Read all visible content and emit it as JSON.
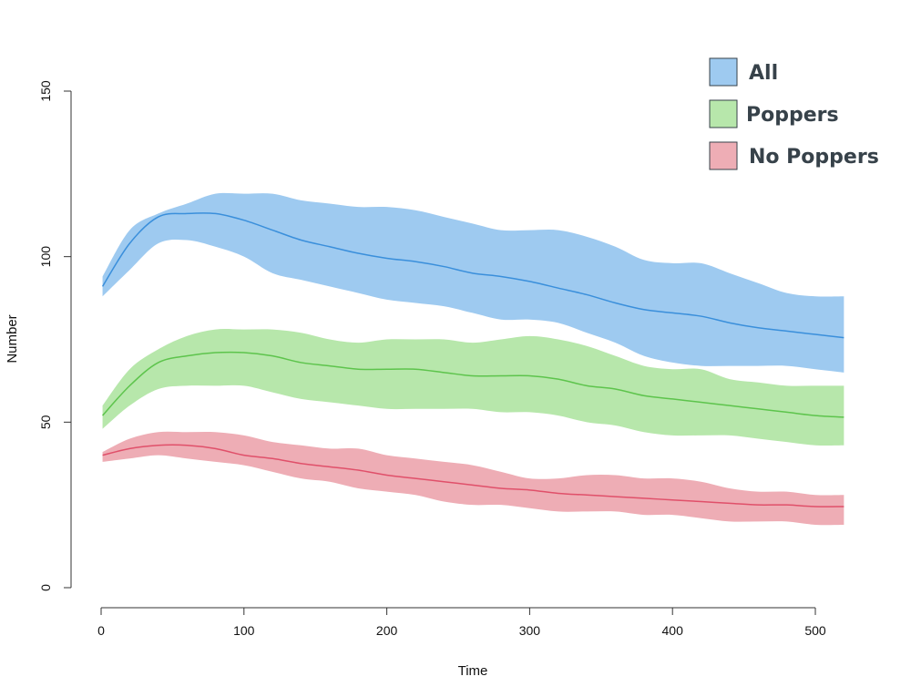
{
  "chart_data": {
    "type": "area",
    "xlabel": "Time",
    "ylabel": "Number",
    "xlim": [
      0,
      520
    ],
    "ylim": [
      0,
      150
    ],
    "x_ticks": [
      0,
      100,
      200,
      300,
      400,
      500
    ],
    "y_ticks": [
      0,
      50,
      100,
      150
    ],
    "grid": false,
    "legend_position": "top-right",
    "x": [
      1,
      20,
      40,
      60,
      80,
      100,
      120,
      140,
      160,
      180,
      200,
      220,
      240,
      260,
      280,
      300,
      320,
      340,
      360,
      380,
      400,
      420,
      440,
      460,
      480,
      500,
      520
    ],
    "series": [
      {
        "name": "All",
        "fill_color": "#9ecaf0",
        "line_color": "#3a8fdb",
        "mean": [
          91,
          104,
          112,
          113,
          113,
          111,
          108,
          105,
          103,
          101,
          99.5,
          98.5,
          97,
          95,
          94,
          92.5,
          90.5,
          88.5,
          86,
          84,
          83,
          82,
          80,
          78.5,
          77.5,
          76.5,
          75.5
        ],
        "upper": [
          94,
          108,
          113,
          116,
          119,
          119,
          119,
          117,
          116,
          115,
          115,
          114,
          112,
          110,
          108,
          108,
          108,
          106,
          103,
          99,
          98,
          98,
          95,
          92,
          89,
          88,
          88
        ],
        "lower": [
          88,
          96,
          104,
          105,
          103,
          100,
          95,
          93,
          91,
          89,
          87,
          86,
          85,
          83,
          81,
          81,
          80,
          77,
          74,
          70,
          68,
          67,
          67,
          67,
          67,
          66,
          65
        ]
      },
      {
        "name": "Poppers",
        "fill_color": "#b7e7ab",
        "line_color": "#5dc44c",
        "mean": [
          52,
          61,
          68,
          70,
          71,
          71,
          70,
          68,
          67,
          66,
          66,
          66,
          65,
          64,
          64,
          64,
          63,
          61,
          60,
          58,
          57,
          56,
          55,
          54,
          53,
          52,
          51.5
        ],
        "upper": [
          55,
          66,
          72,
          76,
          78,
          78,
          78,
          77,
          75,
          74,
          75,
          75,
          75,
          74,
          75,
          76,
          75,
          73,
          70,
          67,
          66,
          66,
          63,
          62,
          61,
          61,
          61
        ],
        "lower": [
          48,
          55,
          60,
          61,
          61,
          61,
          59,
          57,
          56,
          55,
          54,
          54,
          54,
          54,
          53,
          53,
          52,
          50,
          49,
          47,
          46,
          46,
          46,
          45,
          44,
          43,
          43
        ]
      },
      {
        "name": "No Poppers",
        "fill_color": "#eeadb5",
        "line_color": "#e0506a",
        "mean": [
          40,
          42,
          43,
          43,
          42,
          40,
          39,
          37.5,
          36.5,
          35.5,
          34,
          33,
          32,
          31,
          30,
          29.5,
          28.5,
          28,
          27.5,
          27,
          26.5,
          26,
          25.5,
          25,
          25,
          24.5,
          24.5
        ],
        "upper": [
          41,
          45,
          47,
          47,
          47,
          46,
          44,
          43,
          42,
          42,
          40,
          39,
          38,
          37,
          35,
          33,
          33,
          34,
          34,
          33,
          33,
          32,
          30,
          29,
          29,
          28,
          28
        ],
        "lower": [
          38,
          39,
          40,
          39,
          38,
          37,
          35,
          33,
          32,
          30,
          29,
          28,
          26,
          25,
          25,
          24,
          23,
          23,
          23,
          22,
          22,
          21,
          20,
          20,
          20,
          19,
          19
        ]
      }
    ]
  }
}
